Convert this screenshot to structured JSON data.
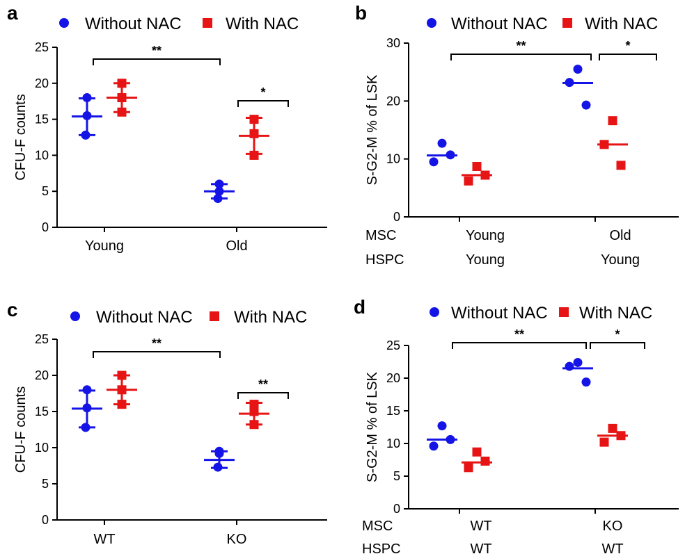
{
  "colors": {
    "without": "#1414e6",
    "with": "#e61414"
  },
  "chart_data": [
    {
      "panel": "a",
      "type": "scatter",
      "legend": [
        "Without NAC",
        "With NAC"
      ],
      "ylabel": "CFU-F counts",
      "ylim": [
        0,
        25
      ],
      "yticks": [
        "0",
        "5",
        "10",
        "15",
        "20",
        "25"
      ],
      "categories": [
        "Young",
        "Old"
      ],
      "series": [
        {
          "name": "Without NAC",
          "groups": [
            {
              "points": [
                18,
                15.5,
                12.8
              ],
              "center": 15.4,
              "err": [
                12.8,
                17.9
              ]
            },
            {
              "points": [
                6,
                5,
                4
              ],
              "center": 5,
              "err": [
                4,
                6
              ]
            }
          ]
        },
        {
          "name": "With NAC",
          "groups": [
            {
              "points": [
                20,
                18,
                16
              ],
              "center": 18,
              "err": [
                16,
                20
              ]
            },
            {
              "points": [
                15,
                13,
                10
              ],
              "center": 12.7,
              "err": [
                10.2,
                15.2
              ]
            }
          ]
        }
      ],
      "significance": [
        {
          "label": "**",
          "from": "Young-Without NAC",
          "to": "Old-Without NAC"
        },
        {
          "label": "*",
          "from": "Old-Without NAC",
          "to": "Old-With NAC"
        }
      ]
    },
    {
      "panel": "b",
      "type": "scatter",
      "legend": [
        "Without NAC",
        "With NAC"
      ],
      "ylabel": "S-G2-M % of LSK",
      "ylim": [
        0,
        30
      ],
      "yticks": [
        "0",
        "10",
        "20",
        "30"
      ],
      "row_labels": [
        {
          "label": "MSC",
          "values": [
            "Young",
            "Old"
          ]
        },
        {
          "label": "HSPC",
          "values": [
            "Young",
            "Young"
          ]
        }
      ],
      "series": [
        {
          "name": "Without NAC",
          "groups": [
            {
              "points": [
                12.7,
                9.5,
                10.7
              ],
              "center": 10.6
            },
            {
              "points": [
                25.5,
                23.2,
                19.3
              ],
              "center": 23.1
            }
          ]
        },
        {
          "name": "With NAC",
          "groups": [
            {
              "points": [
                8.7,
                6.2,
                7.2
              ],
              "center": 7.2
            },
            {
              "points": [
                16.6,
                12.5,
                8.9
              ],
              "center": 12.5
            }
          ]
        }
      ],
      "significance": [
        {
          "label": "**",
          "from": "Young-Without NAC",
          "to": "Old-Without NAC"
        },
        {
          "label": "*",
          "from": "Old-Without NAC",
          "to": "Old-With NAC"
        }
      ]
    },
    {
      "panel": "c",
      "type": "scatter",
      "legend": [
        "Without NAC",
        "With NAC"
      ],
      "ylabel": "CFU-F counts",
      "ylim": [
        0,
        25
      ],
      "yticks": [
        "0",
        "5",
        "10",
        "15",
        "20",
        "25"
      ],
      "categories": [
        "WT",
        "KO"
      ],
      "series": [
        {
          "name": "Without NAC",
          "groups": [
            {
              "points": [
                18,
                15.5,
                12.8
              ],
              "center": 15.4,
              "err": [
                12.8,
                17.9
              ]
            },
            {
              "points": [
                9.5,
                9.2,
                7.3
              ],
              "center": 8.3,
              "err": [
                7.2,
                9.5
              ]
            }
          ]
        },
        {
          "name": "With NAC",
          "groups": [
            {
              "points": [
                20,
                18,
                16
              ],
              "center": 18,
              "err": [
                16,
                20
              ]
            },
            {
              "points": [
                16,
                15,
                13.2
              ],
              "center": 14.7,
              "err": [
                13.2,
                16.2
              ]
            }
          ]
        }
      ],
      "significance": [
        {
          "label": "**",
          "from": "WT-Without NAC",
          "to": "KO-Without NAC"
        },
        {
          "label": "**",
          "from": "KO-Without NAC",
          "to": "KO-With NAC"
        }
      ]
    },
    {
      "panel": "d",
      "type": "scatter",
      "legend": [
        "Without NAC",
        "With NAC"
      ],
      "ylabel": "S-G2-M % of LSK",
      "ylim": [
        0,
        25
      ],
      "yticks": [
        "0",
        "5",
        "10",
        "15",
        "20",
        "25"
      ],
      "row_labels": [
        {
          "label": "MSC",
          "values": [
            "WT",
            "KO"
          ]
        },
        {
          "label": "HSPC",
          "values": [
            "WT",
            "WT"
          ]
        }
      ],
      "series": [
        {
          "name": "Without NAC",
          "groups": [
            {
              "points": [
                12.7,
                9.6,
                10.6
              ],
              "center": 10.6
            },
            {
              "points": [
                22.4,
                21.8,
                19.4
              ],
              "center": 21.5
            }
          ]
        },
        {
          "name": "With NAC",
          "groups": [
            {
              "points": [
                8.7,
                6.3,
                7.3
              ],
              "center": 7.1
            },
            {
              "points": [
                12.3,
                10.2,
                11.2
              ],
              "center": 11.2
            }
          ]
        }
      ],
      "significance": [
        {
          "label": "**",
          "from": "WT-Without NAC",
          "to": "KO-Without NAC"
        },
        {
          "label": "*",
          "from": "KO-Without NAC",
          "to": "KO-With NAC"
        }
      ]
    }
  ]
}
